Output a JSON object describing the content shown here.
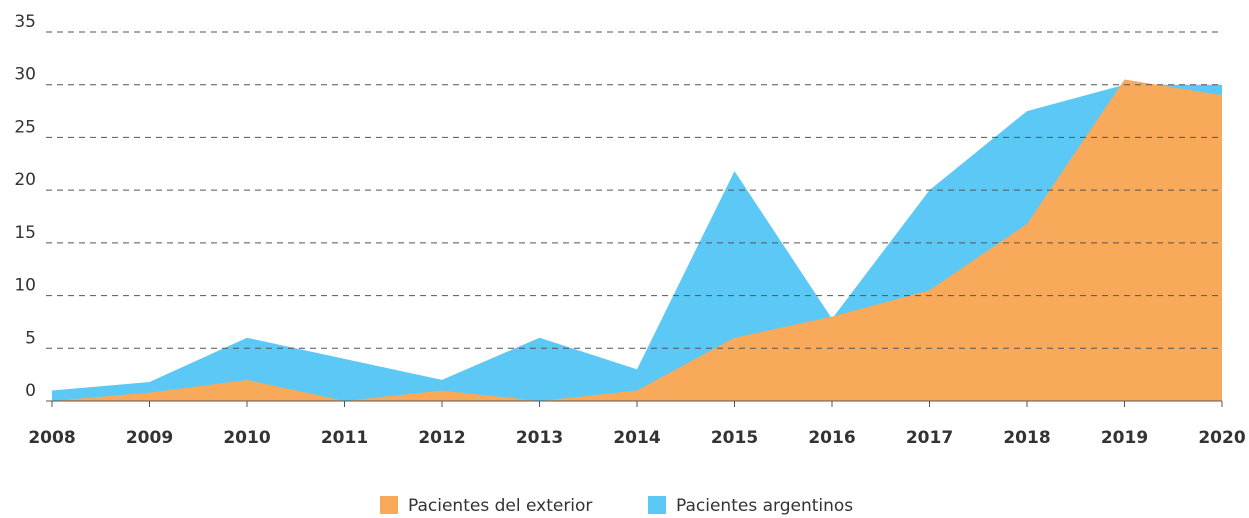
{
  "chart_data": {
    "type": "area",
    "categories": [
      "2008",
      "2009",
      "2010",
      "2011",
      "2012",
      "2013",
      "2014",
      "2015",
      "2016",
      "2017",
      "2018",
      "2019",
      "2020"
    ],
    "series": [
      {
        "name": "Pacientes del exterior",
        "color": "#f9a95a",
        "values": [
          0,
          0.8,
          2,
          0,
          1,
          0,
          1,
          6,
          8,
          10.5,
          16.8,
          30.5,
          29
        ]
      },
      {
        "name": "Pacientes argentinos",
        "color": "#5bc8f5",
        "values": [
          1,
          1.8,
          6,
          4,
          2,
          6,
          3,
          21.8,
          7.8,
          20,
          27.5,
          30,
          30
        ]
      }
    ],
    "ylim": [
      0,
      35
    ],
    "yticks": [
      0,
      5,
      10,
      15,
      20,
      25,
      30,
      35
    ],
    "grid": true,
    "legend": "bottom"
  }
}
